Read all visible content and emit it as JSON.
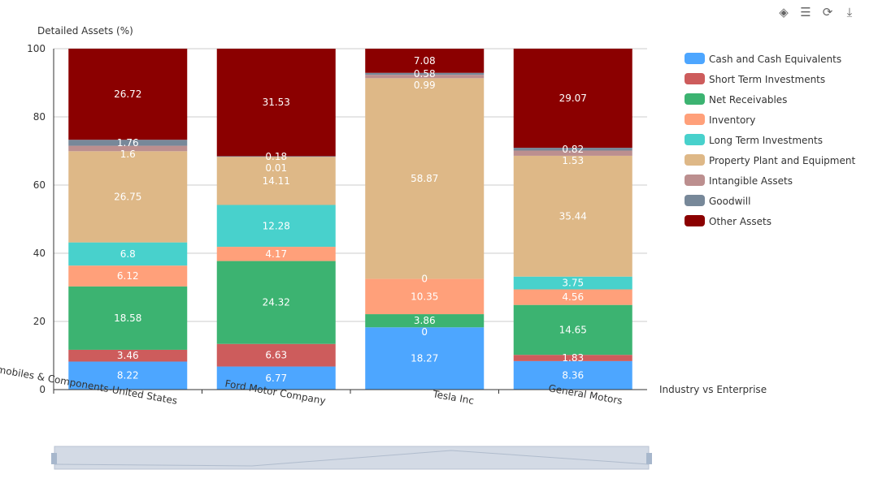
{
  "toolbar": {
    "icons": [
      "tag-icon",
      "data-view-icon",
      "restore-icon",
      "download-icon"
    ]
  },
  "chart_data": {
    "type": "bar",
    "stacked": true,
    "ylabel": "Detailed Assets (%)",
    "xlabel": "Industry vs Enterprise",
    "ylim": [
      0,
      100
    ],
    "yticks": [
      0,
      20,
      40,
      60,
      80,
      100
    ],
    "grid": true,
    "legend_position": "right",
    "categories": [
      "Automobiles & Components-United States",
      "Ford Motor Company",
      "Tesla Inc",
      "General Motors"
    ],
    "series": [
      {
        "name": "Cash and Cash Equivalents",
        "color": "#4da6ff",
        "values": [
          8.22,
          6.77,
          18.27,
          8.36
        ]
      },
      {
        "name": "Short Term Investments",
        "color": "#cd5c5c",
        "values": [
          3.46,
          6.63,
          0,
          1.83
        ]
      },
      {
        "name": "Net Receivables",
        "color": "#3cb371",
        "values": [
          18.58,
          24.32,
          3.86,
          14.65
        ]
      },
      {
        "name": "Inventory",
        "color": "#ffa07a",
        "values": [
          6.12,
          4.17,
          10.35,
          4.56
        ]
      },
      {
        "name": "Long Term Investments",
        "color": "#48d1cc",
        "values": [
          6.8,
          12.28,
          0,
          3.75
        ]
      },
      {
        "name": "Property Plant and Equipment",
        "color": "#deb887",
        "values": [
          26.75,
          14.11,
          58.87,
          35.44
        ]
      },
      {
        "name": "Intangible Assets",
        "color": "#bc8f8f",
        "values": [
          1.6,
          0.01,
          0.99,
          1.53
        ]
      },
      {
        "name": "Goodwill",
        "color": "#778899",
        "values": [
          1.76,
          0.18,
          0.58,
          0.82
        ]
      },
      {
        "name": "Other Assets",
        "color": "#8b0000",
        "values": [
          26.72,
          31.53,
          7.08,
          29.07
        ]
      }
    ]
  }
}
